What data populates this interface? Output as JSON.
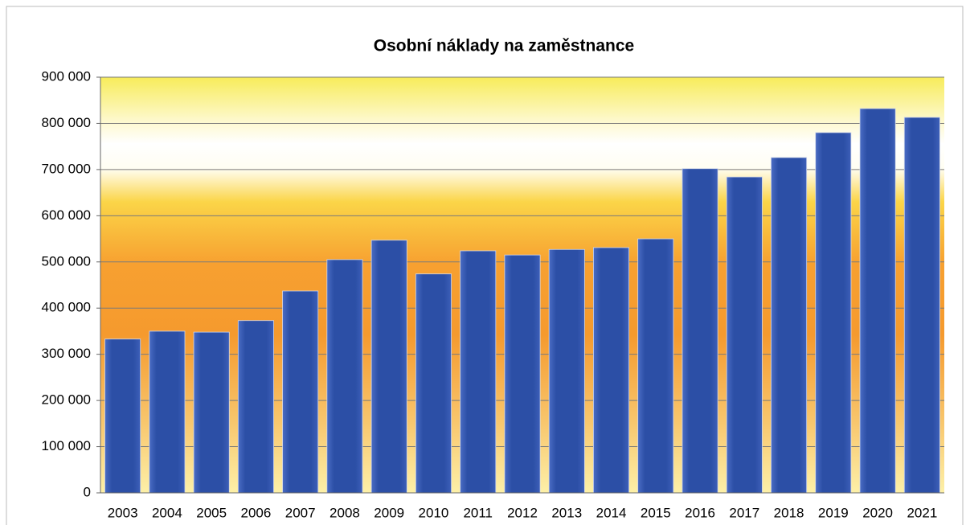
{
  "chart_data": {
    "type": "bar",
    "title": "Osobní náklady na zaměstnance",
    "categories": [
      "2003",
      "2004",
      "2005",
      "2006",
      "2007",
      "2008",
      "2009",
      "2010",
      "2011",
      "2012",
      "2013",
      "2014",
      "2015",
      "2016",
      "2017",
      "2018",
      "2019",
      "2020",
      "2021"
    ],
    "values": [
      333000,
      350000,
      348000,
      373000,
      437000,
      505000,
      547000,
      474000,
      524000,
      515000,
      527000,
      531000,
      550000,
      702000,
      684000,
      726000,
      780000,
      832000,
      813000
    ],
    "color": "#2c4fa6",
    "ylim": [
      0,
      900000
    ],
    "yticks": [
      0,
      {
        "value": 100000,
        "label": "100 000"
      },
      {
        "value": 200000,
        "label": "200 000"
      },
      {
        "value": 300000,
        "label": "300 000"
      },
      {
        "value": 400000,
        "label": "400 000"
      },
      {
        "value": 500000,
        "label": "500 000"
      },
      {
        "value": 600000,
        "label": "600 000"
      },
      {
        "value": 700000,
        "label": "700 000"
      },
      {
        "value": 800000,
        "label": "800 000"
      },
      {
        "value": 900000,
        "label": "900 000"
      }
    ],
    "grid": true
  }
}
